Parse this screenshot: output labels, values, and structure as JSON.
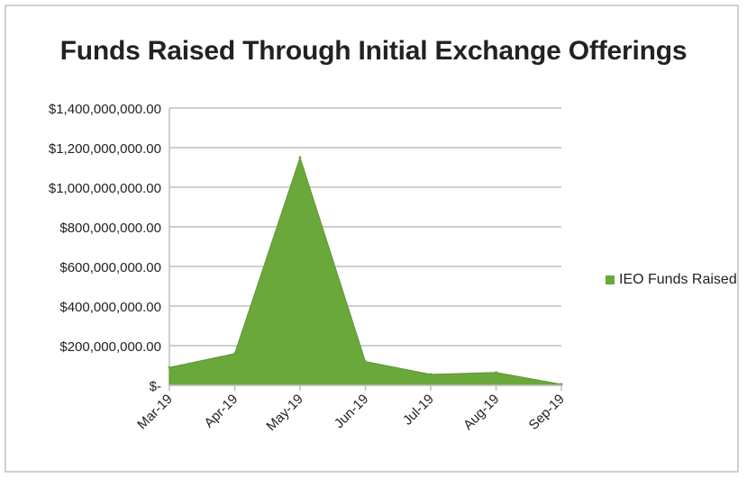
{
  "chart_data": {
    "type": "area",
    "title": "Funds Raised Through Initial Exchange Offerings",
    "categories": [
      "Mar-19",
      "Apr-19",
      "May-19",
      "Jun-19",
      "Jul-19",
      "Aug-19",
      "Sep-19"
    ],
    "series": [
      {
        "name": "IEO Funds Raised",
        "values": [
          90000000,
          160000000,
          1150000000,
          120000000,
          55000000,
          65000000,
          5000000
        ],
        "color": "#6aa83c"
      }
    ],
    "yticks": [
      "$-",
      "$200,000,000.00",
      "$400,000,000.00",
      "$600,000,000.00",
      "$800,000,000.00",
      "$1,000,000,000.00",
      "$1,200,000,000.00",
      "$1,400,000,000.00"
    ],
    "ylim": [
      0,
      1400000000
    ],
    "grid": true,
    "legend": "right"
  }
}
